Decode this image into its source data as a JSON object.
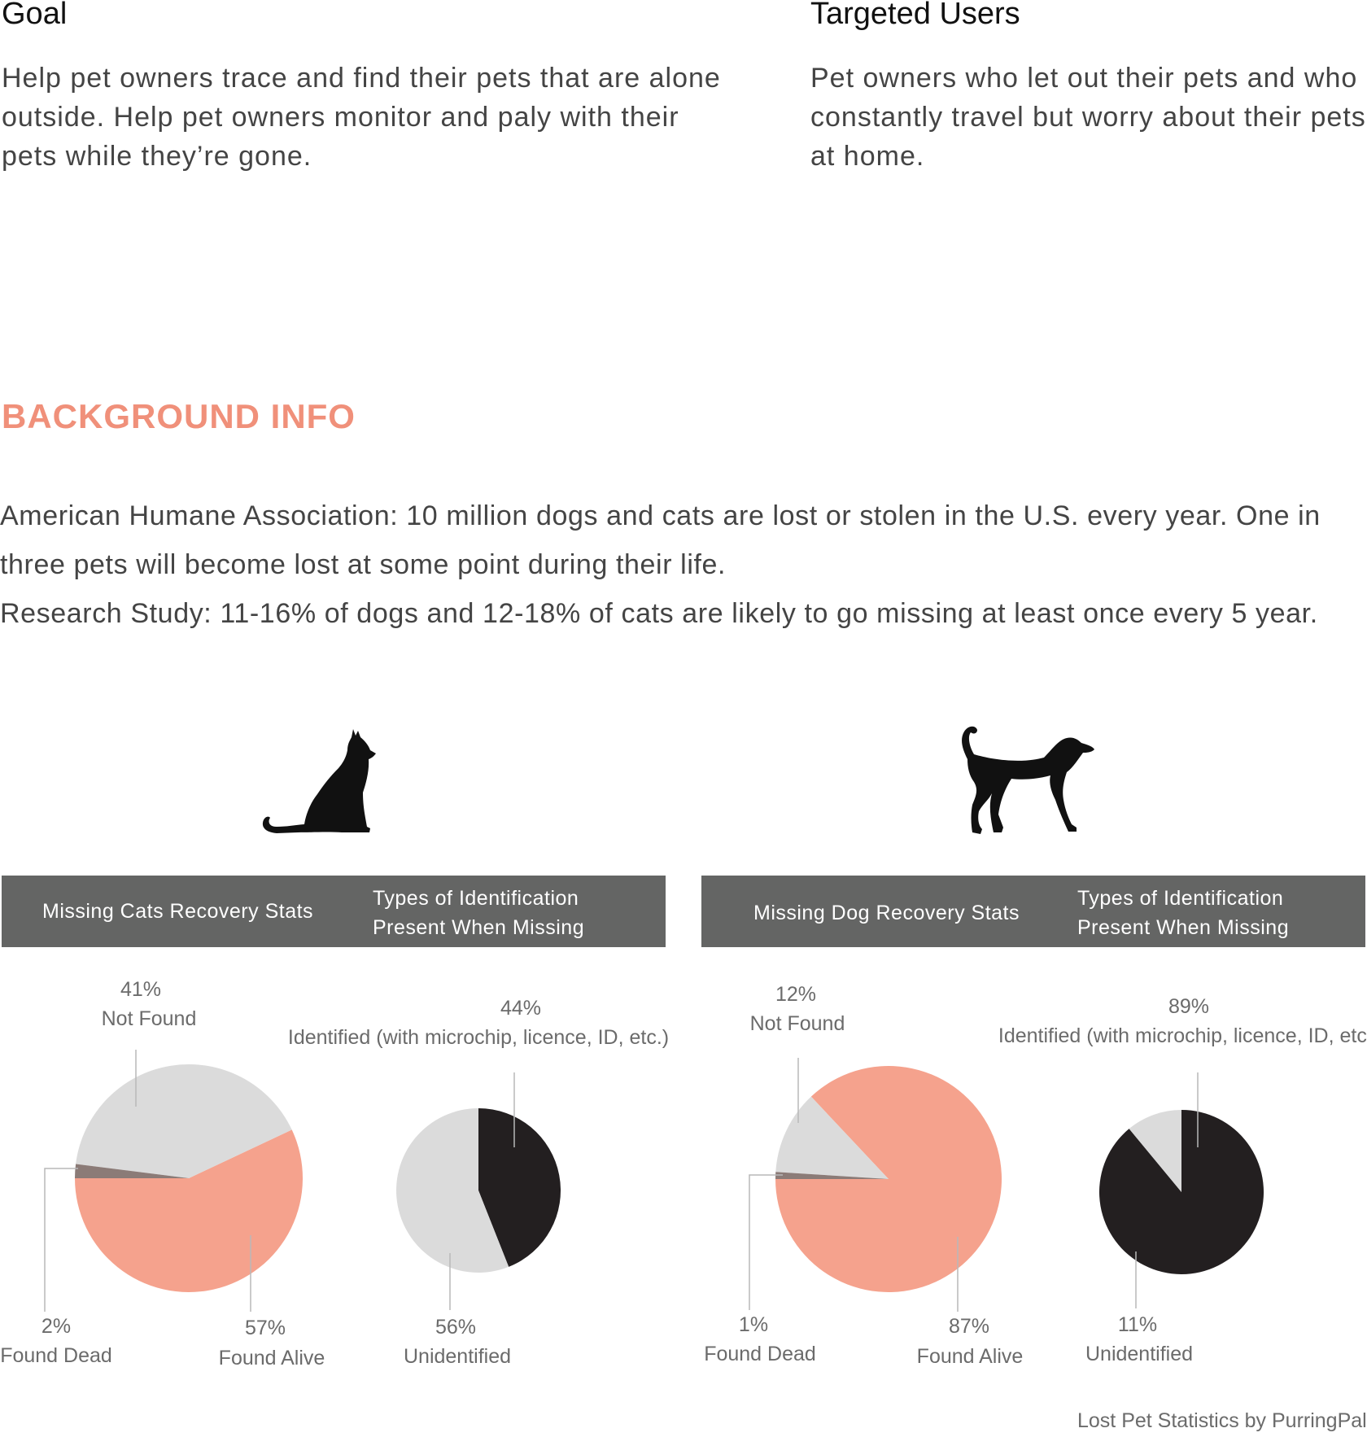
{
  "goal": {
    "title": "Goal",
    "text": "Help pet owners trace and find their pets that are alone outside. Help pet owners monitor and paly with their pets while they’re gone."
  },
  "targeted": {
    "title": "Targeted Users",
    "text": "Pet owners who let out their pets and who constantly travel but worry about their pets at home."
  },
  "background": {
    "title": "BACKGROUND INFO",
    "line1": "American Humane Association: 10 million dogs and cats are lost or stolen in the U.S. every year. One in three pets will become lost at some point during their life.",
    "line2": "Research Study: 11-16% of dogs and 12-18% of cats are likely to go missing at least once every 5 year."
  },
  "icons": {
    "cat": "cat-silhouette-icon",
    "dog": "dog-silhouette-icon"
  },
  "colors": {
    "found_alive": "#f5a28d",
    "not_found": "#dbdbdb",
    "found_dead": "#8b7b77",
    "identified": "#231f20",
    "unidentified": "#dbdbdb",
    "bar": "#646564"
  },
  "cats": {
    "bar_left": "Missing Cats Recovery Stats",
    "bar_right_1": "Types of Identification",
    "bar_right_2": "Present When Missing"
  },
  "dogs": {
    "bar_left": "Missing Dog Recovery Stats",
    "bar_right_1": "Types of Identification",
    "bar_right_2": "Present When Missing"
  },
  "chart_data": [
    {
      "type": "pie",
      "slices": [
        {
          "label": "Found Alive",
          "value": 57,
          "display": "57%",
          "color": "#f5a28d"
        },
        {
          "label": "Not Found",
          "value": 41,
          "display": "41%",
          "color": "#dbdbdb"
        },
        {
          "label": "Found Dead",
          "value": 2,
          "display": "2%",
          "color": "#8b7b77"
        }
      ]
    },
    {
      "type": "pie",
      "slices": [
        {
          "label": "Identified (with microchip, licence, ID, etc.)",
          "value": 44,
          "display": "44%",
          "color": "#231f20"
        },
        {
          "label": "Unidentified",
          "value": 56,
          "display": "56%",
          "color": "#dbdbdb"
        }
      ]
    },
    {
      "type": "pie",
      "slices": [
        {
          "label": "Found Alive",
          "value": 87,
          "display": "87%",
          "color": "#f5a28d"
        },
        {
          "label": "Not Found",
          "value": 12,
          "display": "12%",
          "color": "#dbdbdb"
        },
        {
          "label": "Found Dead",
          "value": 1,
          "display": "1%",
          "color": "#8b7b77"
        }
      ]
    },
    {
      "type": "pie",
      "slices": [
        {
          "label": "Identified (with microchip, licence, ID, etc.)",
          "value": 89,
          "display": "89%",
          "color": "#231f20"
        },
        {
          "label": "Unidentified",
          "value": 11,
          "display": "11%",
          "color": "#dbdbdb"
        }
      ]
    }
  ],
  "credit": "Lost Pet Statistics by PurringPal"
}
